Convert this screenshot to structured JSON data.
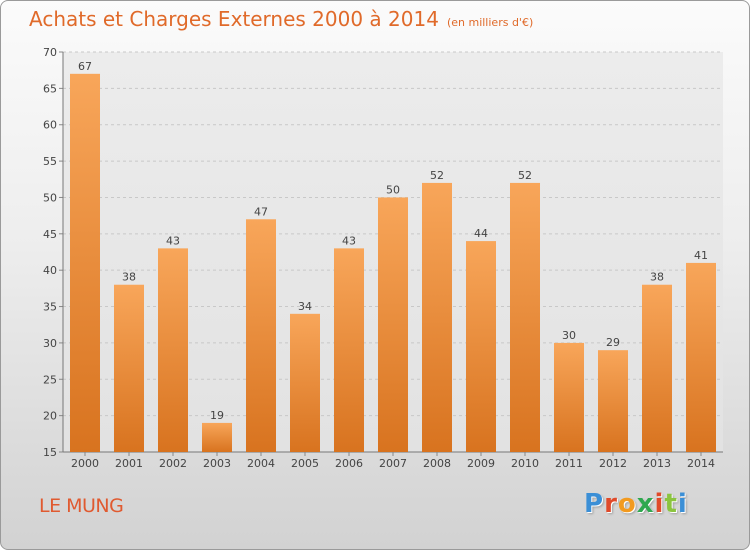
{
  "header": {
    "title": "Achats et Charges Externes 2000 à 2014",
    "unit": "(en milliers d'€)"
  },
  "footer": {
    "commune": "LE MUNG",
    "brand": [
      "P",
      "r",
      "o",
      "x",
      "i",
      "t",
      "i"
    ]
  },
  "colors": {
    "bar_light": "#f8a65a",
    "bar_dark": "#d8731f",
    "title": "#e06a2a",
    "brand": [
      "#3b8fd6",
      "#e04a2a",
      "#f29a1f",
      "#2fa84f",
      "#e04a2a",
      "#8bc43f",
      "#3b8fd6"
    ]
  },
  "chart_data": {
    "type": "bar",
    "categories": [
      "2000",
      "2001",
      "2002",
      "2003",
      "2004",
      "2005",
      "2006",
      "2007",
      "2008",
      "2009",
      "2010",
      "2011",
      "2012",
      "2013",
      "2014"
    ],
    "values": [
      67,
      38,
      43,
      19,
      47,
      34,
      43,
      50,
      52,
      44,
      52,
      30,
      29,
      38,
      41
    ],
    "yticks": [
      15,
      20,
      25,
      30,
      35,
      40,
      45,
      50,
      55,
      60,
      65,
      70
    ],
    "ylim": [
      15,
      70
    ],
    "grid": "horizontal dashed"
  }
}
